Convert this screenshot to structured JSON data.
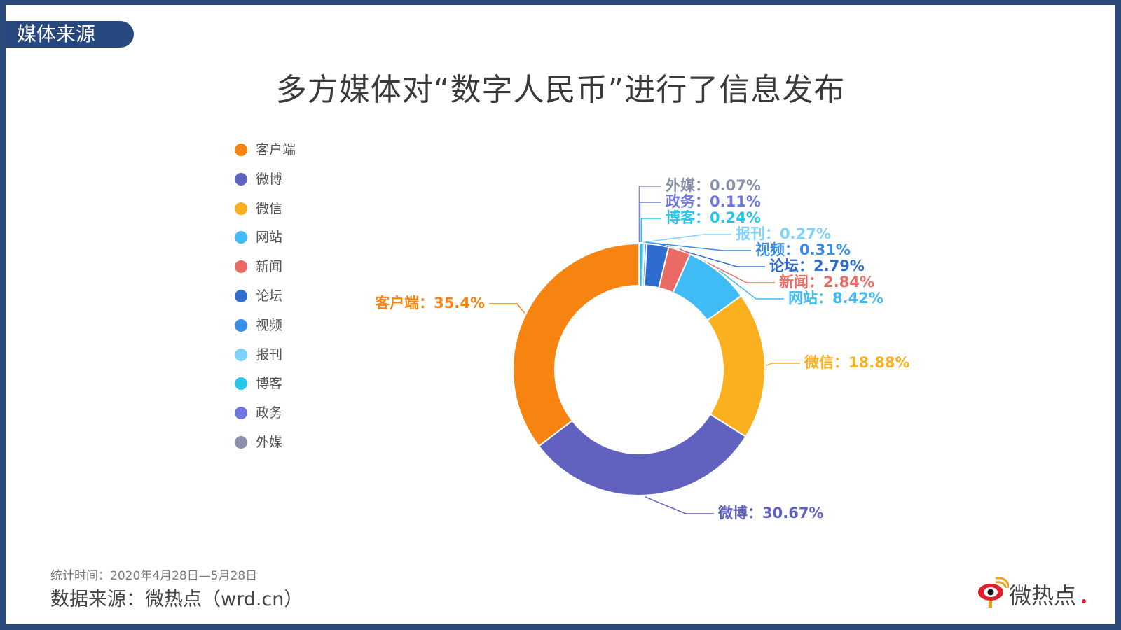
{
  "header": {
    "tag": "媒体来源"
  },
  "footer": {
    "time": "统计时间：2020年4月28日—5月28日",
    "source": "数据来源：微热点（wrd.cn）",
    "logo_text": "微热点"
  },
  "chart_data": {
    "type": "pie",
    "variant": "donut",
    "title": "多方媒体对“数字人民币”进行了信息发布",
    "legend_position": "left",
    "label_separator": "：",
    "slices": [
      {
        "name": "客户端",
        "value": 35.4,
        "label": "35.4%",
        "color": "#f78411"
      },
      {
        "name": "微博",
        "value": 30.67,
        "label": "30.67%",
        "color": "#6162c0"
      },
      {
        "name": "微信",
        "value": 18.88,
        "label": "18.88%",
        "color": "#fbb020"
      },
      {
        "name": "网站",
        "value": 8.42,
        "label": "8.42%",
        "color": "#3fbcf6"
      },
      {
        "name": "新闻",
        "value": 2.84,
        "label": "2.84%",
        "color": "#ea6b63"
      },
      {
        "name": "论坛",
        "value": 2.79,
        "label": "2.79%",
        "color": "#2f6ccf"
      },
      {
        "name": "视频",
        "value": 0.31,
        "label": "0.31%",
        "color": "#3a8ee8"
      },
      {
        "name": "报刊",
        "value": 0.27,
        "label": "0.27%",
        "color": "#7ed3fb"
      },
      {
        "name": "博客",
        "value": 0.24,
        "label": "0.24%",
        "color": "#25c6e6"
      },
      {
        "name": "政务",
        "value": 0.11,
        "label": "0.11%",
        "color": "#7076e0"
      },
      {
        "name": "外媒",
        "value": 0.07,
        "label": "0.07%",
        "color": "#8890aa"
      }
    ]
  }
}
